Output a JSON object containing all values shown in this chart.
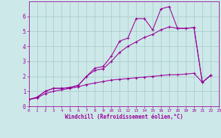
{
  "xlabel": "Windchill (Refroidissement éolien,°C)",
  "background_color": "#cde8e8",
  "line_color": "#990099",
  "grid_color": "#aacccc",
  "x_data": [
    0,
    1,
    2,
    3,
    4,
    5,
    6,
    7,
    8,
    9,
    10,
    11,
    12,
    13,
    14,
    15,
    16,
    17,
    18,
    19,
    20,
    21,
    22,
    23
  ],
  "y_line1": [
    0.45,
    0.6,
    1.0,
    1.2,
    1.2,
    1.25,
    1.4,
    2.0,
    2.55,
    2.65,
    3.35,
    4.35,
    4.55,
    5.85,
    5.85,
    5.1,
    6.5,
    6.65,
    5.2,
    5.2,
    5.25,
    1.6,
    2.05,
    null
  ],
  "y_line2": [
    0.45,
    0.6,
    1.0,
    1.2,
    1.2,
    1.25,
    1.4,
    2.0,
    2.4,
    2.5,
    3.0,
    3.6,
    4.0,
    4.3,
    4.6,
    4.8,
    5.1,
    5.3,
    5.2,
    5.2,
    5.25,
    1.6,
    2.05,
    null
  ],
  "y_line3": [
    0.45,
    0.55,
    0.85,
    1.0,
    1.1,
    1.2,
    1.3,
    1.45,
    1.55,
    1.65,
    1.75,
    1.8,
    1.85,
    1.9,
    1.95,
    2.0,
    2.05,
    2.1,
    2.1,
    2.15,
    2.2,
    1.6,
    2.05,
    null
  ],
  "xlim": [
    0,
    23
  ],
  "ylim": [
    0,
    7
  ],
  "xticks": [
    0,
    1,
    2,
    3,
    4,
    5,
    6,
    7,
    8,
    9,
    10,
    11,
    12,
    13,
    14,
    15,
    16,
    17,
    18,
    19,
    20,
    21,
    22,
    23
  ],
  "yticks": [
    0,
    1,
    2,
    3,
    4,
    5,
    6
  ],
  "marker": "+",
  "markersize": 3,
  "linewidth": 0.8
}
